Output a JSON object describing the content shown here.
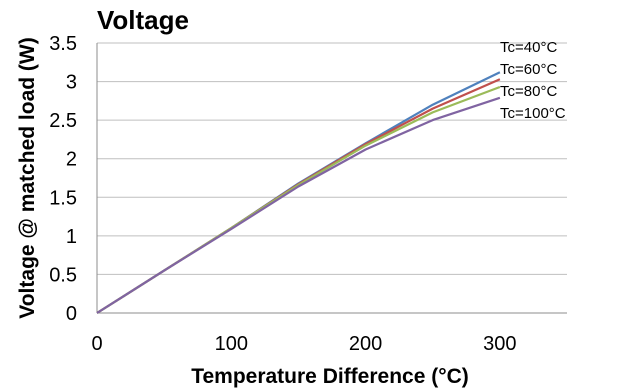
{
  "chart_data": {
    "type": "line",
    "title": "Voltage",
    "xlabel": "Temperature Difference (°C)",
    "ylabel": "Voltage @ matched load (W)",
    "xlim": [
      0,
      350
    ],
    "ylim": [
      0,
      3.5
    ],
    "x_ticks": [
      "0",
      "100",
      "200",
      "300"
    ],
    "y_ticks": [
      "0",
      "0.5",
      "1",
      "1.5",
      "2",
      "2.5",
      "3",
      "3.5"
    ],
    "grid": "horizontal",
    "legend_placement": "right",
    "series": [
      {
        "name": "Tc=40°C",
        "color": "#4f81bd",
        "x": [
          0,
          50,
          100,
          150,
          200,
          250,
          300
        ],
        "y": [
          0,
          0.55,
          1.1,
          1.68,
          2.2,
          2.7,
          3.12
        ]
      },
      {
        "name": "Tc=60°C",
        "color": "#c0504d",
        "x": [
          0,
          50,
          100,
          150,
          200,
          250,
          300
        ],
        "y": [
          0,
          0.55,
          1.1,
          1.67,
          2.19,
          2.65,
          3.03
        ]
      },
      {
        "name": "Tc=80°C",
        "color": "#9bbb59",
        "x": [
          0,
          50,
          100,
          150,
          200,
          250,
          300
        ],
        "y": [
          0,
          0.55,
          1.1,
          1.66,
          2.17,
          2.6,
          2.93
        ]
      },
      {
        "name": "Tc=100°C",
        "color": "#8064a2",
        "x": [
          0,
          50,
          100,
          150,
          200,
          250,
          300
        ],
        "y": [
          0,
          0.55,
          1.09,
          1.64,
          2.12,
          2.5,
          2.79
        ]
      }
    ]
  }
}
